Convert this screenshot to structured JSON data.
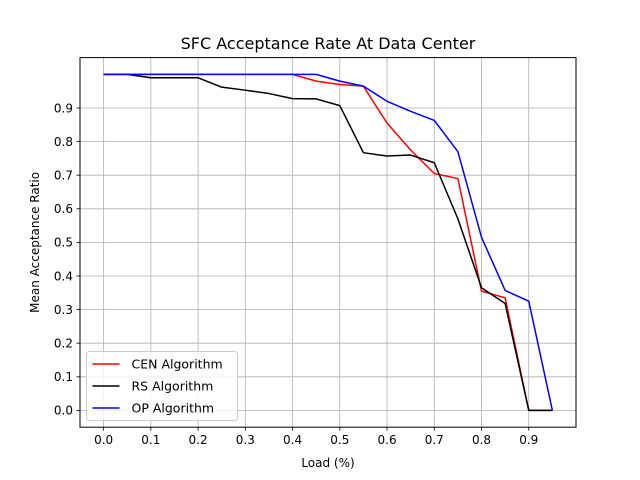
{
  "chart_data": {
    "type": "line",
    "title": "SFC Acceptance Rate At Data Center",
    "xlabel": "Load (%)",
    "ylabel": "Mean Acceptance Ratio",
    "xlim": [
      -0.05,
      1.0
    ],
    "ylim": [
      -0.05,
      1.05
    ],
    "xticks": [
      0.0,
      0.1,
      0.2,
      0.3,
      0.4,
      0.5,
      0.6,
      0.7,
      0.8,
      0.9
    ],
    "xtick_labels": [
      "0.0",
      "0.1",
      "0.2",
      "0.3",
      "0.4",
      "0.5",
      "0.6",
      "0.7",
      "0.8",
      "0.9"
    ],
    "yticks": [
      0.0,
      0.1,
      0.2,
      0.3,
      0.4,
      0.5,
      0.6,
      0.7,
      0.8,
      0.9
    ],
    "ytick_labels": [
      "0.0",
      "0.1",
      "0.2",
      "0.3",
      "0.4",
      "0.5",
      "0.6",
      "0.7",
      "0.8",
      "0.9"
    ],
    "grid": true,
    "legend_position": "lower-left",
    "series": [
      {
        "name": "CEN Algorithm",
        "color": "#ff0000",
        "x": [
          0.0,
          0.05,
          0.1,
          0.15,
          0.2,
          0.25,
          0.3,
          0.35,
          0.4,
          0.45,
          0.5,
          0.55,
          0.6,
          0.65,
          0.7,
          0.75,
          0.8,
          0.85,
          0.9,
          0.95
        ],
        "y": [
          1.0,
          1.0,
          1.0,
          1.0,
          1.0,
          1.0,
          1.0,
          1.0,
          1.0,
          0.98,
          0.97,
          0.965,
          0.855,
          0.775,
          0.705,
          0.69,
          0.355,
          0.335,
          0.0,
          0.0
        ]
      },
      {
        "name": "RS Algorithm",
        "color": "#000000",
        "x": [
          0.0,
          0.05,
          0.1,
          0.15,
          0.2,
          0.25,
          0.3,
          0.35,
          0.4,
          0.45,
          0.5,
          0.55,
          0.6,
          0.65,
          0.7,
          0.75,
          0.8,
          0.85,
          0.9,
          0.95
        ],
        "y": [
          1.0,
          1.0,
          0.99,
          0.99,
          0.99,
          0.962,
          0.953,
          0.943,
          0.928,
          0.927,
          0.907,
          0.767,
          0.757,
          0.76,
          0.737,
          0.57,
          0.365,
          0.318,
          0.0,
          0.0
        ]
      },
      {
        "name": "OP Algorithm",
        "color": "#0000ff",
        "x": [
          0.0,
          0.05,
          0.1,
          0.15,
          0.2,
          0.25,
          0.3,
          0.35,
          0.4,
          0.45,
          0.5,
          0.55,
          0.6,
          0.65,
          0.7,
          0.75,
          0.8,
          0.85,
          0.9,
          0.95
        ],
        "y": [
          1.0,
          1.0,
          1.0,
          1.0,
          1.0,
          1.0,
          1.0,
          1.0,
          1.0,
          1.0,
          0.98,
          0.965,
          0.92,
          0.89,
          0.863,
          0.77,
          0.515,
          0.357,
          0.325,
          0.0
        ]
      }
    ]
  }
}
